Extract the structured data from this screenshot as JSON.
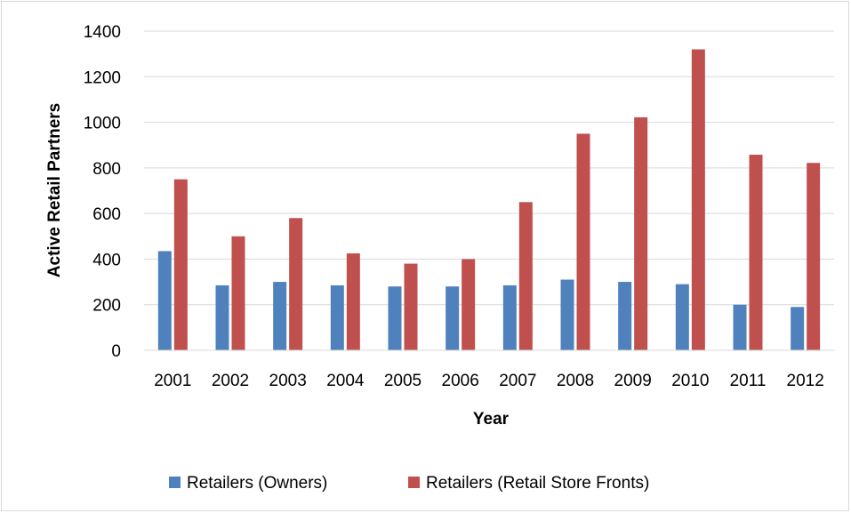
{
  "chart_data": {
    "type": "bar",
    "title": "",
    "xlabel": "Year",
    "ylabel": "Active Retail Partners",
    "ylim": [
      0,
      1400
    ],
    "yticks": [
      0,
      200,
      400,
      600,
      800,
      1000,
      1200,
      1400
    ],
    "grid": true,
    "legend_position": "bottom",
    "categories": [
      "2001",
      "2002",
      "2003",
      "2004",
      "2005",
      "2006",
      "2007",
      "2008",
      "2009",
      "2010",
      "2011",
      "2012"
    ],
    "series": [
      {
        "name": "Retailers (Owners)",
        "color": "#4f81bd",
        "values": [
          435,
          285,
          300,
          285,
          280,
          280,
          285,
          310,
          300,
          290,
          200,
          190
        ]
      },
      {
        "name": "Retailers (Retail Store Fronts)",
        "color": "#c0504d",
        "values": [
          750,
          500,
          580,
          425,
          380,
          400,
          650,
          950,
          1022,
          1320,
          858,
          822
        ]
      }
    ]
  }
}
